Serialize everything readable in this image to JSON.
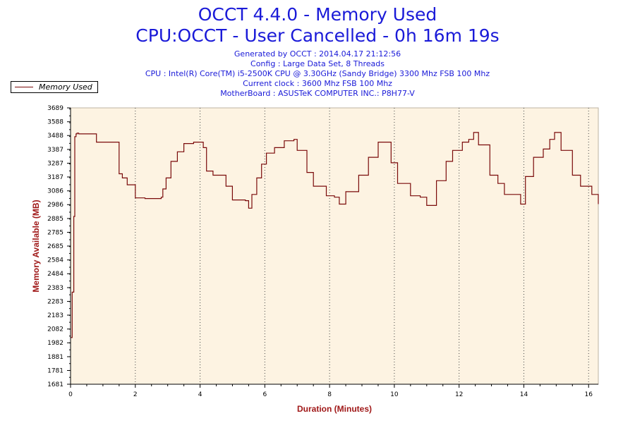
{
  "header": {
    "title_line1": "OCCT 4.4.0 - Memory Used",
    "title_line2": "CPU:OCCT - User Cancelled - 0h 16m 19s",
    "generated": "Generated by OCCT : 2014.04.17 21:12:56",
    "config": "Config : Large Data Set, 8 Threads",
    "cpu": "CPU : Intel(R) Core(TM) i5-2500K CPU @ 3.30GHz (Sandy Bridge) 3300 Mhz FSB 100 Mhz",
    "clock": "Current clock : 3600 Mhz FSB 100 Mhz",
    "motherboard": "MotherBoard : ASUSTeK COMPUTER INC.: P8H77-V"
  },
  "legend": {
    "label": "Memory Used"
  },
  "colors": {
    "title": "#1a1ad8",
    "line": "#7a0a0a",
    "plot_bg": "#fdf3e2",
    "axis_title": "#a01818"
  },
  "chart_data": {
    "type": "line",
    "title": "OCCT 4.4.0 - Memory Used",
    "xlabel": "Duration (Minutes)",
    "ylabel": "Memory Available (MB)",
    "xlim": [
      0,
      16.3
    ],
    "ylim": [
      1681,
      3689
    ],
    "x_ticks": [
      0,
      2,
      4,
      6,
      8,
      10,
      12,
      14,
      16
    ],
    "y_ticks": [
      1681,
      1781,
      1881,
      1982,
      2082,
      2183,
      2283,
      2383,
      2484,
      2584,
      2685,
      2785,
      2885,
      2986,
      3086,
      3187,
      3287,
      3387,
      3488,
      3588,
      3689
    ],
    "grid": "vertical dotted at major x ticks",
    "legend_position": "top-left",
    "series": [
      {
        "name": "Memory Used",
        "x": [
          0,
          0.05,
          0.1,
          0.13,
          0.17,
          0.2,
          0.25,
          0.8,
          1.3,
          1.5,
          1.6,
          1.75,
          2.0,
          2.3,
          2.8,
          2.85,
          2.95,
          3.1,
          3.3,
          3.5,
          3.8,
          4.1,
          4.2,
          4.4,
          4.8,
          5.0,
          5.4,
          5.5,
          5.6,
          5.75,
          5.9,
          6.05,
          6.3,
          6.6,
          6.9,
          7.0,
          7.3,
          7.5,
          7.9,
          8.15,
          8.3,
          8.5,
          8.9,
          9.2,
          9.5,
          9.7,
          9.9,
          10.1,
          10.5,
          10.8,
          11.0,
          11.3,
          11.6,
          11.8,
          12.1,
          12.3,
          12.45,
          12.6,
          12.95,
          13.2,
          13.4,
          13.9,
          14.05,
          14.3,
          14.6,
          14.8,
          14.95,
          15.15,
          15.5,
          15.75,
          16.1,
          16.3
        ],
        "y": [
          2020,
          2350,
          2900,
          3480,
          3500,
          3505,
          3500,
          3440,
          3440,
          3210,
          3180,
          3130,
          3035,
          3030,
          3040,
          3100,
          3180,
          3300,
          3370,
          3430,
          3440,
          3400,
          3230,
          3200,
          3120,
          3020,
          3015,
          2960,
          3060,
          3180,
          3280,
          3360,
          3400,
          3450,
          3460,
          3380,
          3220,
          3120,
          3050,
          3040,
          2990,
          3080,
          3200,
          3330,
          3440,
          3440,
          3290,
          3140,
          3050,
          3040,
          2980,
          3160,
          3300,
          3380,
          3440,
          3460,
          3510,
          3420,
          3200,
          3140,
          3060,
          2990,
          3190,
          3330,
          3390,
          3460,
          3510,
          3380,
          3200,
          3120,
          3060,
          2990
        ]
      }
    ]
  }
}
